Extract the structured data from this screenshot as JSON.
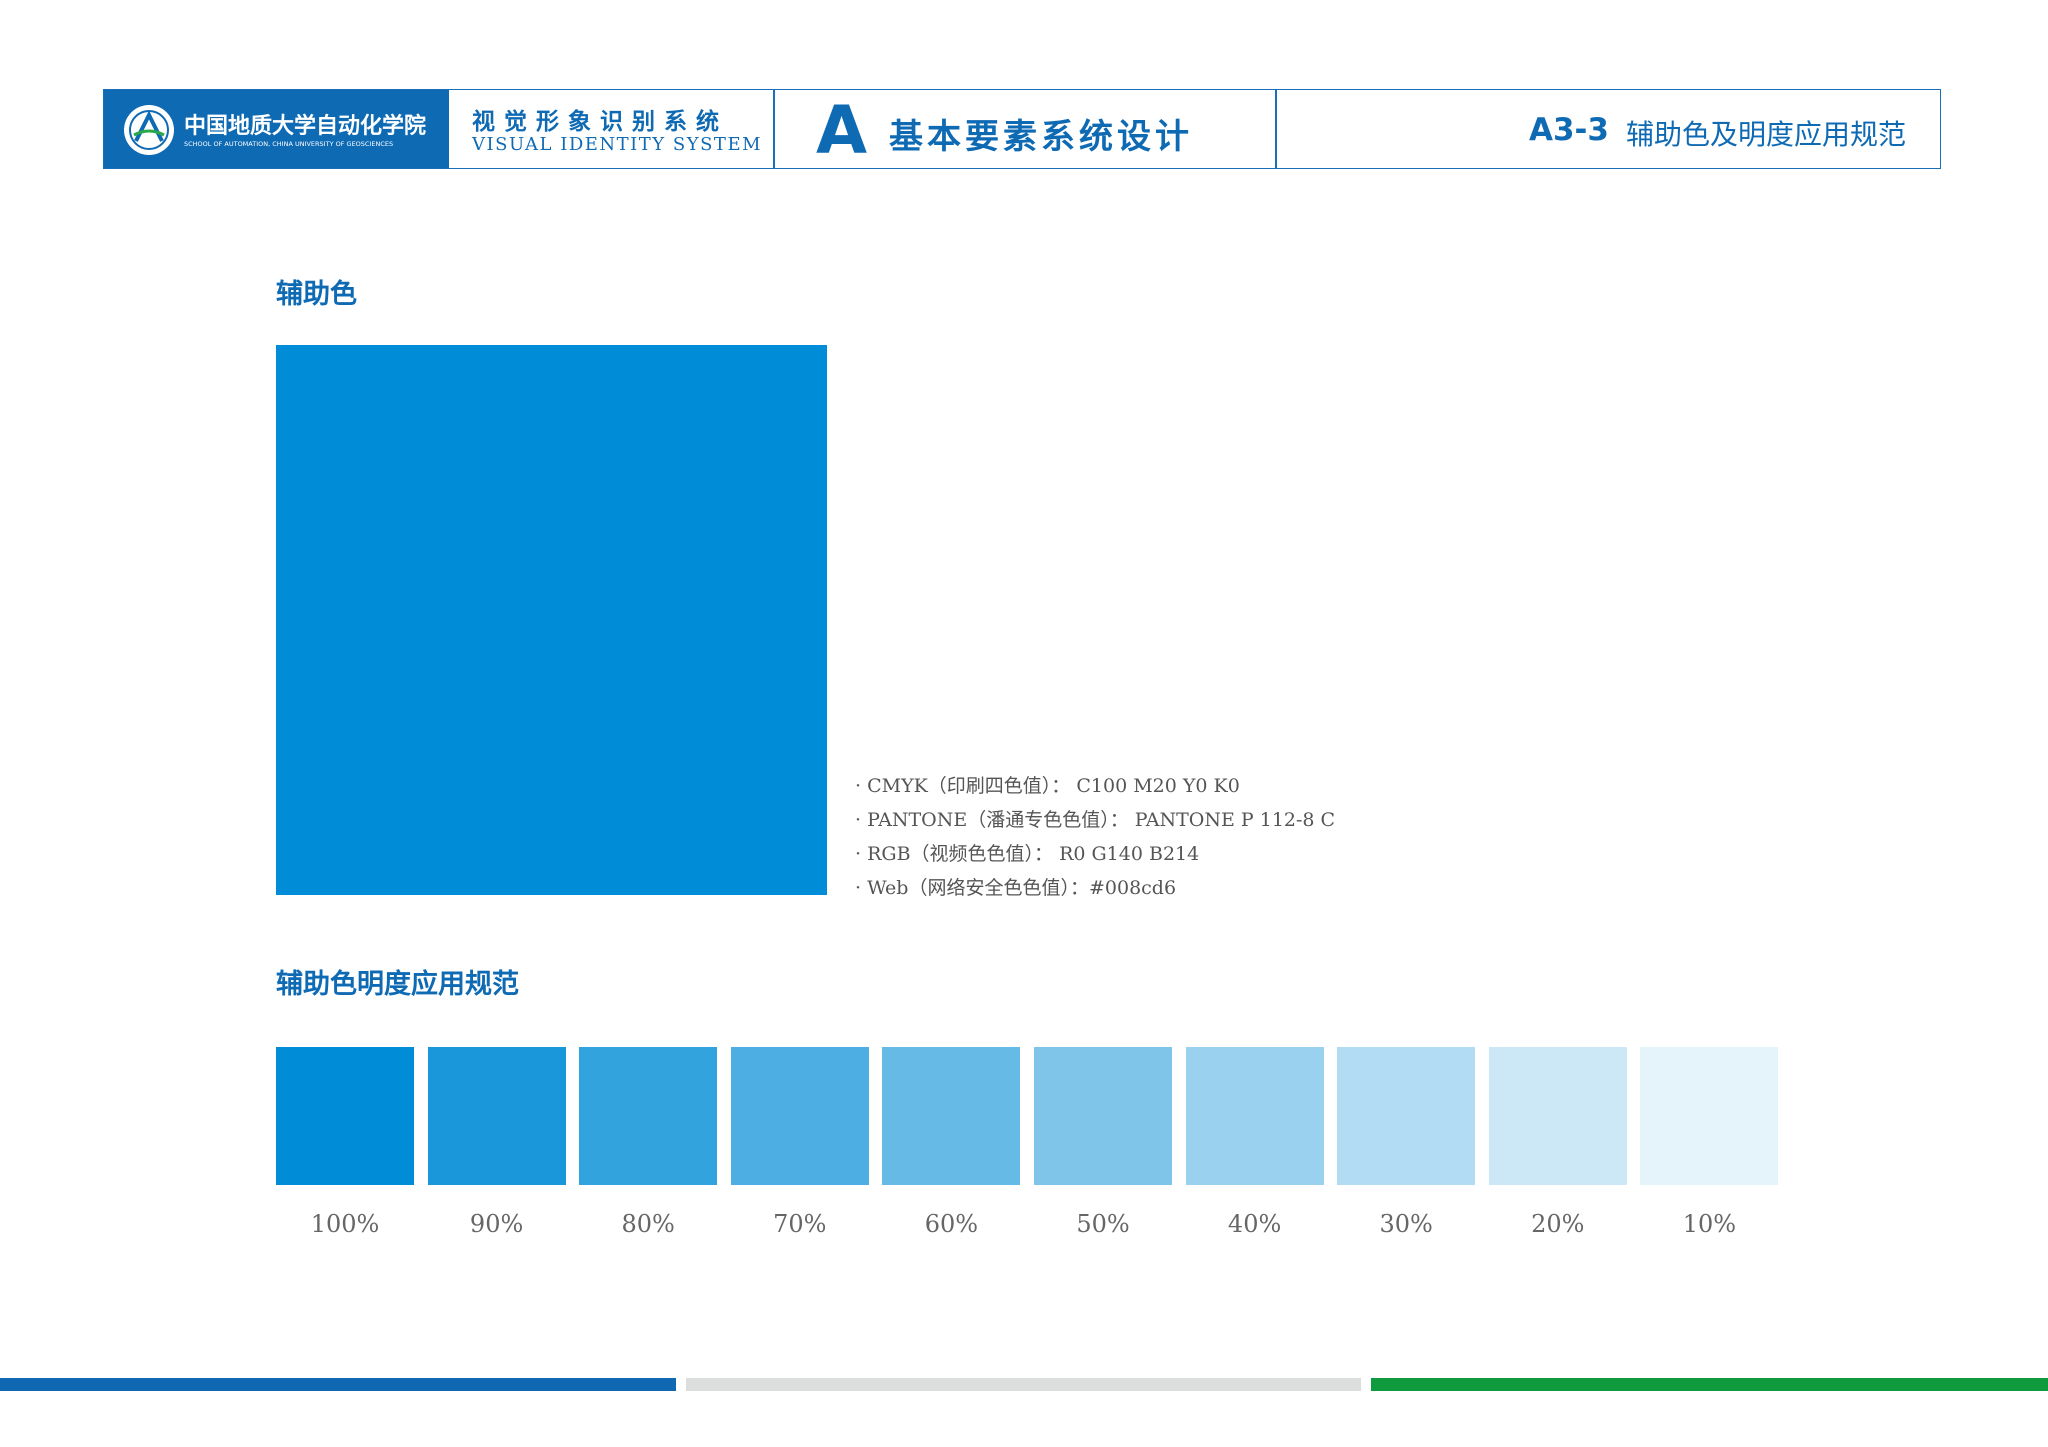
{
  "header": {
    "logo_cn": "中国地质大学自动化学院",
    "logo_en": "SCHOOL OF AUTOMATION, CHINA UNIVERSITY OF GEOSCIENCES",
    "vi_cn": "视觉形象识别系统",
    "vi_en": "VISUAL IDENTITY SYSTEM",
    "section_letter": "A",
    "section_title": "基本要素系统设计",
    "page_code": "A3-3",
    "page_title": "辅助色及明度应用规范"
  },
  "main_color": {
    "heading": "辅助色",
    "color": "#008cd6",
    "specs": [
      "· CMYK（印刷四色值）： C100 M20 Y0 K0",
      "· PANTONE（潘通专色色值）： PANTONE P 112-8 C",
      "· RGB（视频色色值）： R0 G140 B214",
      "· Web（网络安全色色值）：#008cd6"
    ]
  },
  "tints": {
    "heading": "辅助色明度应用规范",
    "values": [
      100,
      90,
      80,
      70,
      60,
      50,
      40,
      30,
      20,
      10
    ],
    "value_labels": [
      "100%",
      "90%",
      "80%",
      "70%",
      "60%",
      "50%",
      "40%",
      "30%",
      "20%",
      "10%"
    ]
  }
}
